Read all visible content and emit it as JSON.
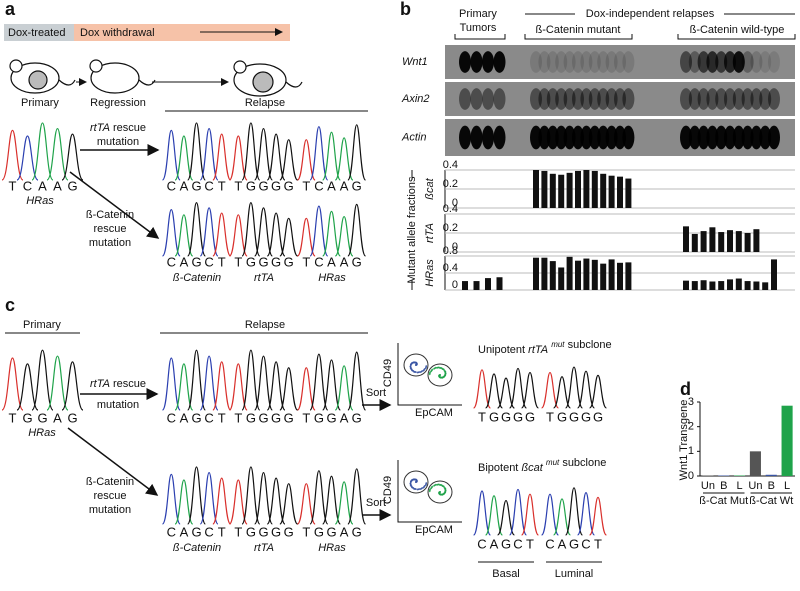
{
  "panel_a": {
    "label": "a",
    "dox_treated": "Dox-treated",
    "dox_withdrawal": "Dox withdrawal",
    "stages": [
      "Primary",
      "Regression",
      "Relapse"
    ],
    "primary": {
      "seq": [
        "T",
        "C",
        "A",
        "A",
        "G"
      ],
      "gene": "HRas"
    },
    "rtta_arrow": [
      "rtTA",
      "rescue",
      "mutation"
    ],
    "bcat_arrow": [
      "ß-Catenin",
      "rescue",
      "mutation"
    ],
    "row1": [
      [
        "C",
        "A",
        "G",
        "C",
        "T"
      ],
      [
        "T",
        "G",
        "G",
        "G",
        "G"
      ],
      [
        "T",
        "C",
        "A",
        "A",
        "G"
      ]
    ],
    "row2": [
      [
        "C",
        "A",
        "G",
        "C",
        "T"
      ],
      [
        "T",
        "G",
        "G",
        "G",
        "G"
      ],
      [
        "T",
        "C",
        "A",
        "A",
        "G"
      ]
    ],
    "genes": [
      "ß-Catenin",
      "rtTA",
      "HRas"
    ]
  },
  "panel_b": {
    "label": "b",
    "primary_tumors": [
      "Primary",
      "Tumors"
    ],
    "relapses": "Dox-independent relapses",
    "groups": [
      "ß-Catenin mutant",
      "ß-Catenin wild-type"
    ],
    "blots": [
      "Wnt1",
      "Axin2",
      "Actin"
    ],
    "y_title": "Mutant allele fractions"
  },
  "chart_data": [
    {
      "type": "bar",
      "name": "ßcat",
      "color": "#111111",
      "ylim": [
        0,
        0.4
      ],
      "yticks": [
        0,
        0.2,
        0.4
      ],
      "grid": true,
      "categories": [
        null,
        null,
        null,
        null,
        null,
        null,
        null,
        null,
        null,
        null,
        null,
        null,
        null,
        null,
        null,
        null,
        null,
        null,
        null,
        null,
        null,
        null,
        null,
        null,
        null,
        null,
        null
      ],
      "values": [
        null,
        null,
        null,
        null,
        0.4,
        0.39,
        0.36,
        0.35,
        0.37,
        0.39,
        0.4,
        0.39,
        0.36,
        0.34,
        0.33,
        0.31,
        null,
        null,
        null,
        null,
        null,
        null,
        null,
        null,
        null,
        null,
        null
      ]
    },
    {
      "type": "bar",
      "name": "rtTA",
      "color": "#111111",
      "ylim": [
        0,
        0.4
      ],
      "yticks": [
        0,
        0.2,
        0.4
      ],
      "grid": true,
      "categories": [
        null,
        null,
        null,
        null,
        null,
        null,
        null,
        null,
        null,
        null,
        null,
        null,
        null,
        null,
        null,
        null,
        null,
        null,
        null,
        null,
        null,
        null,
        null,
        null,
        null,
        null,
        null
      ],
      "values": [
        null,
        null,
        null,
        null,
        null,
        null,
        null,
        null,
        null,
        null,
        null,
        null,
        null,
        null,
        null,
        null,
        0.27,
        0.19,
        0.22,
        0.26,
        0.21,
        0.23,
        0.22,
        0.2,
        0.24,
        null,
        null
      ]
    },
    {
      "type": "bar",
      "name": "HRas",
      "color": "#111111",
      "ylim": [
        0,
        0.8
      ],
      "yticks": [
        0,
        0.4,
        0.8
      ],
      "grid": true,
      "categories": [
        null,
        null,
        null,
        null,
        null,
        null,
        null,
        null,
        null,
        null,
        null,
        null,
        null,
        null,
        null,
        null,
        null,
        null,
        null,
        null,
        null,
        null,
        null,
        null,
        null,
        null,
        null
      ],
      "values": [
        0.21,
        0.21,
        0.28,
        0.3,
        0.76,
        0.76,
        0.68,
        0.53,
        0.78,
        0.69,
        0.74,
        0.71,
        0.62,
        0.72,
        0.64,
        0.65,
        0.22,
        0.21,
        0.23,
        0.2,
        0.21,
        0.25,
        0.27,
        0.21,
        0.2,
        0.18,
        0.72
      ]
    },
    {
      "type": "bar",
      "label": "d",
      "y_label": "Wnt1 Transgene",
      "ylim": [
        0,
        3
      ],
      "yticks": [
        0,
        1,
        2,
        3
      ],
      "categories": [
        "Un",
        "B",
        "L",
        "Un",
        "B",
        "L"
      ],
      "values": [
        0.02,
        0.02,
        0.02,
        1.0,
        0.05,
        2.85
      ],
      "colors": [
        "#555555",
        "#3a55a4",
        "#1fa34a",
        "#555555",
        "#3a55a4",
        "#1fa34a"
      ],
      "groups": [
        "ß-Cat Mut",
        "ß-Cat Wt"
      ]
    }
  ],
  "panel_c": {
    "label": "c",
    "primary_title": "Primary",
    "relapse_title": "Relapse",
    "primary": {
      "seq": [
        "T",
        "G",
        "G",
        "A",
        "G"
      ],
      "gene": "HRas"
    },
    "rtta_arrow": [
      "rtTA",
      "rescue",
      "mutation"
    ],
    "bcat_arrow": [
      "ß-Catenin",
      "rescue",
      "mutation"
    ],
    "row1": [
      [
        "C",
        "A",
        "G",
        "C",
        "T"
      ],
      [
        "T",
        "G",
        "G",
        "G",
        "G"
      ],
      [
        "T",
        "G",
        "G",
        "A",
        "G"
      ]
    ],
    "row2": [
      [
        "C",
        "A",
        "G",
        "C",
        "T"
      ],
      [
        "T",
        "G",
        "G",
        "G",
        "G"
      ],
      [
        "T",
        "G",
        "G",
        "A",
        "G"
      ]
    ],
    "genes": [
      "ß-Catenin",
      "rtTA",
      "HRas"
    ],
    "sort": "Sort",
    "flow_y": "CD49",
    "flow_x": "EpCAM",
    "subclones": [
      {
        "prefix": "Unipotent",
        "gene": "rtTA",
        "sup": "mut",
        "suffix": "subclone",
        "seqs": [
          [
            "T",
            "G",
            "G",
            "G",
            "G"
          ],
          [
            "T",
            "G",
            "G",
            "G",
            "G"
          ]
        ]
      },
      {
        "prefix": "Bipotent",
        "gene": "ßcat",
        "sup": "mut",
        "suffix": "subclone",
        "seqs": [
          [
            "C",
            "A",
            "G",
            "C",
            "T"
          ],
          [
            "C",
            "A",
            "G",
            "C",
            "T"
          ]
        ],
        "labels": [
          "Basal",
          "Luminal"
        ]
      }
    ]
  }
}
